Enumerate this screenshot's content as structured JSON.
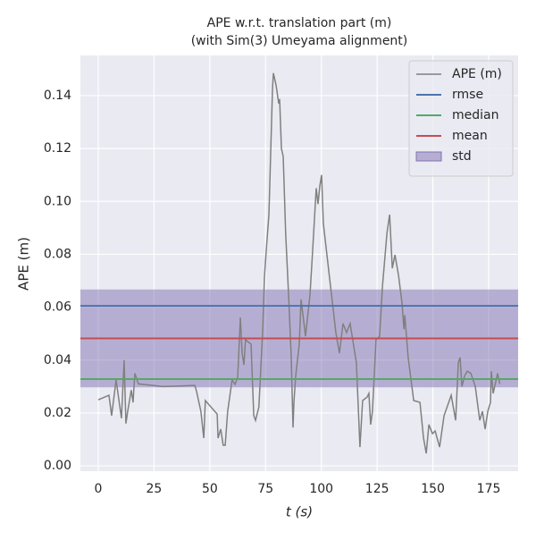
{
  "chart_data": {
    "type": "line",
    "title": "APE w.r.t. translation part (m)",
    "subtitle": "(with Sim(3) Umeyama alignment)",
    "xlabel": "t (s)",
    "ylabel": "APE (m)",
    "xlim": [
      -8,
      188.2
    ],
    "ylim": [
      -0.002,
      0.1552
    ],
    "xticks": [
      0,
      25,
      50,
      75,
      100,
      125,
      150,
      175
    ],
    "yticks": [
      {
        "value": 0,
        "label": "0.00"
      },
      0.02,
      0.04,
      0.06,
      0.08,
      {
        "value": 0.1,
        "label": "0.10"
      },
      0.12,
      0.14
    ],
    "grid": true,
    "legend": "upper right",
    "x": [
      0,
      4.8,
      6,
      8,
      10.4,
      11.6,
      12.4,
      13.2,
      14.8,
      15.6,
      16.4,
      18,
      29.2,
      43.3,
      44,
      46,
      47.3,
      48,
      53.3,
      53.7,
      54.9,
      56,
      56.9,
      58,
      60,
      61.3,
      62.5,
      63.7,
      64.5,
      65.3,
      66,
      68.5,
      69.7,
      70.5,
      72,
      73.7,
      74.5,
      75.3,
      76.5,
      77.3,
      78.1,
      78.5,
      79.7,
      80.9,
      81.3,
      82.1,
      82.9,
      84,
      85.5,
      86.5,
      87.3,
      87.7,
      88.5,
      90.1,
      90.9,
      92.9,
      94.9,
      96.1,
      97.7,
      98.5,
      99.3,
      100.1,
      100.9,
      104.1,
      106.5,
      108.1,
      109.7,
      111.3,
      112.9,
      115.7,
      117.3,
      118.5,
      120.5,
      121.3,
      122.1,
      122.9,
      124.5,
      126.1,
      127.4,
      129.4,
      130.6,
      131.8,
      133,
      134.6,
      136.2,
      137,
      137.4,
      138.9,
      141.4,
      144.2,
      145.8,
      147,
      148.2,
      149.8,
      151,
      153,
      155,
      158.2,
      160.2,
      161.4,
      162.2,
      163,
      164.2,
      165.4,
      167,
      169,
      171,
      172.2,
      173.4,
      174.6,
      175.8,
      176.2,
      177,
      179,
      180
    ],
    "series": [
      {
        "name": "APE (m)",
        "color": "#808080",
        "values": [
          0.025,
          0.0267,
          0.019,
          0.0325,
          0.018,
          0.04,
          0.016,
          0.0206,
          0.0287,
          0.024,
          0.035,
          0.031,
          0.03,
          0.0304,
          0.0284,
          0.0206,
          0.0105,
          0.0247,
          0.0196,
          0.0105,
          0.0139,
          0.0078,
          0.0078,
          0.0206,
          0.0325,
          0.0308,
          0.0335,
          0.0561,
          0.0426,
          0.0382,
          0.0477,
          0.046,
          0.019,
          0.0172,
          0.0223,
          0.051,
          0.0714,
          0.0815,
          0.095,
          0.1187,
          0.1424,
          0.1485,
          0.144,
          0.137,
          0.1387,
          0.12,
          0.117,
          0.088,
          0.0612,
          0.041,
          0.0145,
          0.024,
          0.034,
          0.046,
          0.0629,
          0.049,
          0.0646,
          0.0815,
          0.105,
          0.099,
          0.1058,
          0.11,
          0.0916,
          0.068,
          0.0504,
          0.0426,
          0.0538,
          0.0504,
          0.0538,
          0.039,
          0.0071,
          0.0247,
          0.026,
          0.0274,
          0.0156,
          0.0206,
          0.0477,
          0.049,
          0.068,
          0.088,
          0.095,
          0.0747,
          0.0798,
          0.072,
          0.0612,
          0.0517,
          0.057,
          0.041,
          0.0247,
          0.024,
          0.0105,
          0.0047,
          0.0156,
          0.0122,
          0.0132,
          0.0071,
          0.019,
          0.0267,
          0.0172,
          0.039,
          0.041,
          0.03,
          0.034,
          0.0358,
          0.035,
          0.03,
          0.0172,
          0.0206,
          0.0139,
          0.0206,
          0.024,
          0.0358,
          0.0274,
          0.035,
          0.031
        ]
      }
    ],
    "stats": [
      {
        "name": "rmse",
        "color": "#4c72b0",
        "value": 0.0605
      },
      {
        "name": "median",
        "color": "#55a868",
        "value": 0.0328
      },
      {
        "name": "mean",
        "color": "#c44e52",
        "value": 0.0482
      }
    ],
    "std": {
      "name": "std",
      "color": "#8172b2",
      "value": 0.0185
    }
  }
}
